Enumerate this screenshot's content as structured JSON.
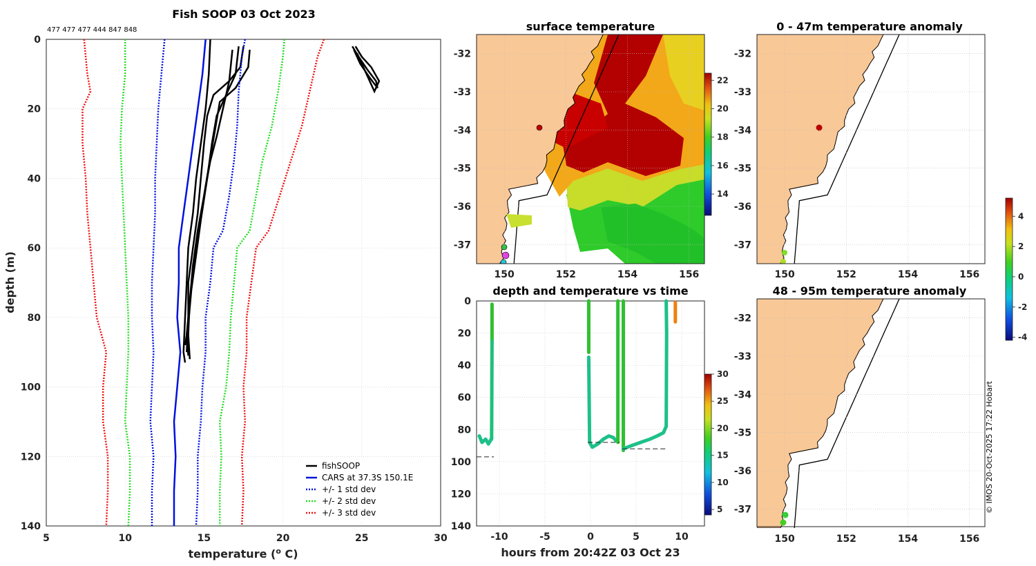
{
  "copyright": "© IMOS 20-Oct-2025 17:22 Hobart",
  "colors": {
    "land": "#f9c897",
    "coast": "#000000",
    "grid": "#bbbbbb"
  },
  "profile": {
    "title": "Fish SOOP 03 Oct 2023",
    "depth_header": "477 477 477 444 847 848",
    "chart_data": {
      "type": "line",
      "title": "Fish SOOP 03 Oct 2023",
      "xlabel": "temperature (o C)",
      "ylabel": "depth (m)",
      "xlim": [
        5,
        30
      ],
      "ylim": [
        140,
        0
      ],
      "xticks": [
        5,
        10,
        15,
        20,
        25,
        30
      ],
      "yticks": [
        0,
        20,
        40,
        60,
        80,
        100,
        120,
        140
      ],
      "series": [
        {
          "name": "fishSOOP",
          "color": "#000000",
          "style": "solid",
          "profiles": [
            [
              [
                15.4,
                0
              ],
              [
                15.3,
                10
              ],
              [
                15.1,
                20
              ],
              [
                14.8,
                30
              ],
              [
                14.5,
                40
              ],
              [
                14.3,
                50
              ],
              [
                14.0,
                60
              ],
              [
                13.9,
                70
              ],
              [
                13.8,
                80
              ],
              [
                13.7,
                90
              ],
              [
                13.8,
                93
              ]
            ],
            [
              [
                17.5,
                2
              ],
              [
                17.3,
                8
              ],
              [
                16.6,
                12
              ],
              [
                15.6,
                16
              ],
              [
                15.2,
                22
              ],
              [
                15.0,
                30
              ],
              [
                14.8,
                40
              ],
              [
                14.6,
                50
              ],
              [
                14.3,
                60
              ],
              [
                14.0,
                70
              ],
              [
                14.0,
                80
              ],
              [
                13.9,
                90
              ]
            ],
            [
              [
                17.9,
                3
              ],
              [
                17.8,
                8
              ],
              [
                17.0,
                14
              ],
              [
                16.0,
                18
              ],
              [
                15.7,
                26
              ],
              [
                15.4,
                34
              ],
              [
                15.0,
                45
              ],
              [
                14.6,
                55
              ],
              [
                14.3,
                65
              ],
              [
                14.1,
                75
              ],
              [
                14.0,
                85
              ],
              [
                14.1,
                92
              ]
            ],
            [
              [
                17.2,
                2
              ],
              [
                17.0,
                10
              ],
              [
                16.5,
                15
              ],
              [
                15.8,
                22
              ],
              [
                15.5,
                30
              ],
              [
                15.2,
                40
              ],
              [
                14.8,
                52
              ],
              [
                14.5,
                62
              ],
              [
                14.2,
                72
              ],
              [
                14.0,
                82
              ],
              [
                13.8,
                88
              ]
            ],
            [
              [
                16.8,
                3
              ],
              [
                16.6,
                12
              ],
              [
                16.2,
                20
              ],
              [
                15.8,
                28
              ],
              [
                15.4,
                35
              ],
              [
                15.0,
                45
              ],
              [
                14.7,
                55
              ],
              [
                14.4,
                65
              ],
              [
                14.1,
                75
              ],
              [
                13.9,
                85
              ],
              [
                14.0,
                91
              ]
            ],
            [
              [
                24.4,
                2
              ],
              [
                24.8,
                5
              ],
              [
                25.4,
                9
              ],
              [
                25.9,
                12
              ],
              [
                26.0,
                14
              ],
              [
                25.5,
                11
              ],
              [
                24.9,
                7
              ],
              [
                24.5,
                3
              ]
            ],
            [
              [
                24.6,
                2
              ],
              [
                25.0,
                5
              ],
              [
                25.6,
                8
              ],
              [
                26.1,
                12
              ],
              [
                25.8,
                15
              ],
              [
                25.2,
                9
              ],
              [
                24.7,
                4
              ]
            ]
          ]
        },
        {
          "name": "CARS at 37.3S 150.1E",
          "color": "#0011dd",
          "style": "solid",
          "points": [
            [
              15.1,
              0
            ],
            [
              14.9,
              10
            ],
            [
              14.6,
              20
            ],
            [
              14.3,
              30
            ],
            [
              14.0,
              40
            ],
            [
              13.7,
              50
            ],
            [
              13.4,
              60
            ],
            [
              13.4,
              70
            ],
            [
              13.3,
              80
            ],
            [
              13.5,
              90
            ],
            [
              13.3,
              100
            ],
            [
              13.1,
              110
            ],
            [
              13.2,
              120
            ],
            [
              13.1,
              130
            ],
            [
              13.1,
              140
            ]
          ]
        },
        {
          "name": "+/- 1 std dev",
          "color": "#0011dd",
          "style": "dotted",
          "points_low": [
            [
              12.5,
              0
            ],
            [
              12.3,
              10
            ],
            [
              12.1,
              20
            ],
            [
              12.0,
              30
            ],
            [
              11.9,
              40
            ],
            [
              11.9,
              50
            ],
            [
              11.8,
              60
            ],
            [
              11.7,
              70
            ],
            [
              11.7,
              80
            ],
            [
              11.8,
              90
            ],
            [
              11.7,
              100
            ],
            [
              11.6,
              110
            ],
            [
              11.8,
              120
            ],
            [
              11.7,
              130
            ],
            [
              11.7,
              140
            ]
          ],
          "points_high": [
            [
              17.6,
              0
            ],
            [
              17.4,
              5
            ],
            [
              17.2,
              15
            ],
            [
              17.1,
              25
            ],
            [
              16.9,
              35
            ],
            [
              16.6,
              45
            ],
            [
              16.2,
              55
            ],
            [
              15.6,
              60
            ],
            [
              15.4,
              70
            ],
            [
              15.1,
              80
            ],
            [
              15.1,
              90
            ],
            [
              14.9,
              100
            ],
            [
              14.8,
              110
            ],
            [
              14.6,
              120
            ],
            [
              14.6,
              130
            ],
            [
              14.5,
              140
            ]
          ]
        },
        {
          "name": "+/- 2 std dev",
          "color": "#22dd22",
          "style": "dotted",
          "points_low": [
            [
              10.0,
              0
            ],
            [
              10.0,
              10
            ],
            [
              9.8,
              20
            ],
            [
              9.7,
              30
            ],
            [
              9.8,
              40
            ],
            [
              9.9,
              50
            ],
            [
              10.0,
              60
            ],
            [
              10.1,
              70
            ],
            [
              10.2,
              80
            ],
            [
              10.2,
              90
            ],
            [
              10.1,
              100
            ],
            [
              10.0,
              110
            ],
            [
              10.3,
              120
            ],
            [
              10.3,
              130
            ],
            [
              10.2,
              140
            ]
          ],
          "points_high": [
            [
              20.1,
              0
            ],
            [
              20.0,
              5
            ],
            [
              19.7,
              15
            ],
            [
              19.3,
              25
            ],
            [
              18.7,
              35
            ],
            [
              18.3,
              45
            ],
            [
              17.9,
              55
            ],
            [
              17.1,
              60
            ],
            [
              16.9,
              70
            ],
            [
              16.7,
              80
            ],
            [
              16.6,
              90
            ],
            [
              16.4,
              100
            ],
            [
              16.0,
              110
            ],
            [
              16.1,
              120
            ],
            [
              16.0,
              130
            ],
            [
              16.0,
              140
            ]
          ]
        },
        {
          "name": "+/- 3 std dev",
          "color": "#ee1111",
          "style": "dotted",
          "points_low": [
            [
              7.4,
              0
            ],
            [
              7.6,
              10
            ],
            [
              7.8,
              15
            ],
            [
              7.3,
              20
            ],
            [
              7.3,
              30
            ],
            [
              7.5,
              40
            ],
            [
              7.6,
              50
            ],
            [
              7.8,
              60
            ],
            [
              8.0,
              70
            ],
            [
              8.2,
              80
            ],
            [
              8.8,
              90
            ],
            [
              8.6,
              100
            ],
            [
              8.6,
              110
            ],
            [
              8.9,
              120
            ],
            [
              8.9,
              130
            ],
            [
              8.8,
              140
            ]
          ],
          "points_high": [
            [
              22.6,
              0
            ],
            [
              22.2,
              5
            ],
            [
              21.7,
              15
            ],
            [
              21.2,
              25
            ],
            [
              20.5,
              35
            ],
            [
              19.8,
              45
            ],
            [
              19.1,
              55
            ],
            [
              18.3,
              60
            ],
            [
              18.0,
              70
            ],
            [
              17.7,
              80
            ],
            [
              17.7,
              90
            ],
            [
              17.5,
              100
            ],
            [
              17.6,
              110
            ],
            [
              17.4,
              120
            ],
            [
              17.5,
              130
            ],
            [
              17.4,
              140
            ]
          ]
        }
      ],
      "legend": [
        "fishSOOP",
        "CARS at 37.3S 150.1E",
        "+/- 1 std dev",
        "+/- 2 std dev",
        "+/- 3 std dev"
      ]
    }
  },
  "sst": {
    "title": "surface temperature",
    "xticks": [
      "150",
      "152",
      "154",
      "156"
    ],
    "yticks": [
      "-32",
      "-33",
      "-34",
      "-35",
      "-36",
      "-37"
    ],
    "lon_range": [
      149.1,
      156.5
    ],
    "lat_range": [
      -37.5,
      -31.5
    ],
    "colorbar": {
      "min": 12.5,
      "max": 22.5,
      "ticks": [
        "14",
        "16",
        "18",
        "20",
        "22"
      ]
    }
  },
  "anom1": {
    "title": "0 - 47m temperature anomaly",
    "xticks": [
      "150",
      "152",
      "154",
      "156"
    ],
    "yticks": [
      "-32",
      "-33",
      "-34",
      "-35",
      "-36",
      "-37"
    ]
  },
  "anom2": {
    "title": "48 - 95m temperature anomaly",
    "xticks": [
      "150",
      "152",
      "154",
      "156"
    ],
    "yticks": [
      "-32",
      "-33",
      "-34",
      "-35",
      "-36",
      "-37"
    ]
  },
  "anom_colorbar": {
    "min": -4.2,
    "max": 5.2,
    "ticks": [
      "4",
      "2",
      "0",
      "-2",
      "-4"
    ]
  },
  "timeseries": {
    "title": "depth and temperature vs time",
    "xlabel": "hours from 20:42Z 03 Oct 23",
    "xticks": [
      "-10",
      "-5",
      "0",
      "5",
      "10"
    ],
    "yticks": [
      "0",
      "20",
      "40",
      "60",
      "80",
      "100",
      "120",
      "140"
    ],
    "chart_data": {
      "type": "scatter",
      "xlim": [
        -12.5,
        12.5
      ],
      "ylim": [
        140,
        0
      ],
      "casts": [
        {
          "x": -10.8,
          "depth": [
            2,
            95
          ],
          "temp": 16
        },
        {
          "x": -0.2,
          "depth": [
            0,
            91
          ],
          "temp": 16
        },
        {
          "x": 3.0,
          "depth": [
            0,
            88
          ],
          "temp": 16
        },
        {
          "x": 3.6,
          "depth": [
            0,
            93
          ],
          "temp": 16
        },
        {
          "x": 8.3,
          "depth": [
            0,
            80
          ],
          "temp": 16
        },
        {
          "x": 9.3,
          "depth": [
            0,
            15
          ],
          "temp": 26
        }
      ],
      "seafloor": [
        {
          "x": [
            -12.5,
            -10.6
          ],
          "depth": 97
        },
        {
          "x": -0.3,
          "x2": 3.2,
          "depth": 88
        },
        {
          "x2": 8.3,
          "x": 3.5,
          "depth": 92
        }
      ],
      "colorbar": {
        "min": 4,
        "max": 30,
        "ticks": [
          "30",
          "25",
          "20",
          "15",
          "10",
          "5"
        ]
      }
    }
  }
}
